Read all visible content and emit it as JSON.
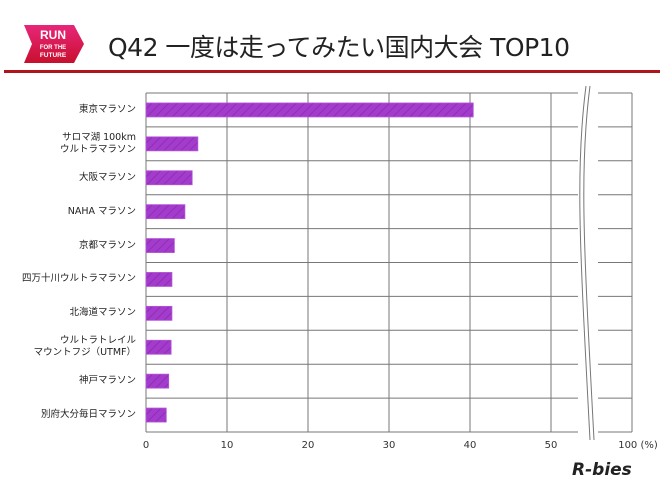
{
  "header": {
    "title": "Q42 一度は走ってみたい国内大会 TOP10",
    "logo_text": "RUN FOR THE FUTURE",
    "brand": "R-bies"
  },
  "colors": {
    "bar": "#a33ccc",
    "accent": "#b0151c",
    "grid": "#666666"
  },
  "chart_data": {
    "type": "bar",
    "orientation": "horizontal",
    "title": "Q42 一度は走ってみたい国内大会 TOP10",
    "categories": [
      "東京マラソン",
      "サロマ湖 100km\nウルトラマラソン",
      "大阪マラソン",
      "NAHA マラソン",
      "京都マラソン",
      "四万十川ウルトラマラソン",
      "北海道マラソン",
      "ウルトラトレイル\nマウントフジ（UTMF）",
      "神戸マラソン",
      "別府大分毎日マラソン"
    ],
    "values": [
      40.4,
      6.4,
      5.7,
      4.8,
      3.5,
      3.2,
      3.2,
      3.1,
      2.8,
      2.5
    ],
    "xticks": [
      "0",
      "10",
      "20",
      "30",
      "40",
      "50",
      "100 (%)"
    ],
    "xlim": [
      0,
      100
    ],
    "axis_break": "between 50 and 100",
    "grid": true,
    "unit": "%"
  }
}
